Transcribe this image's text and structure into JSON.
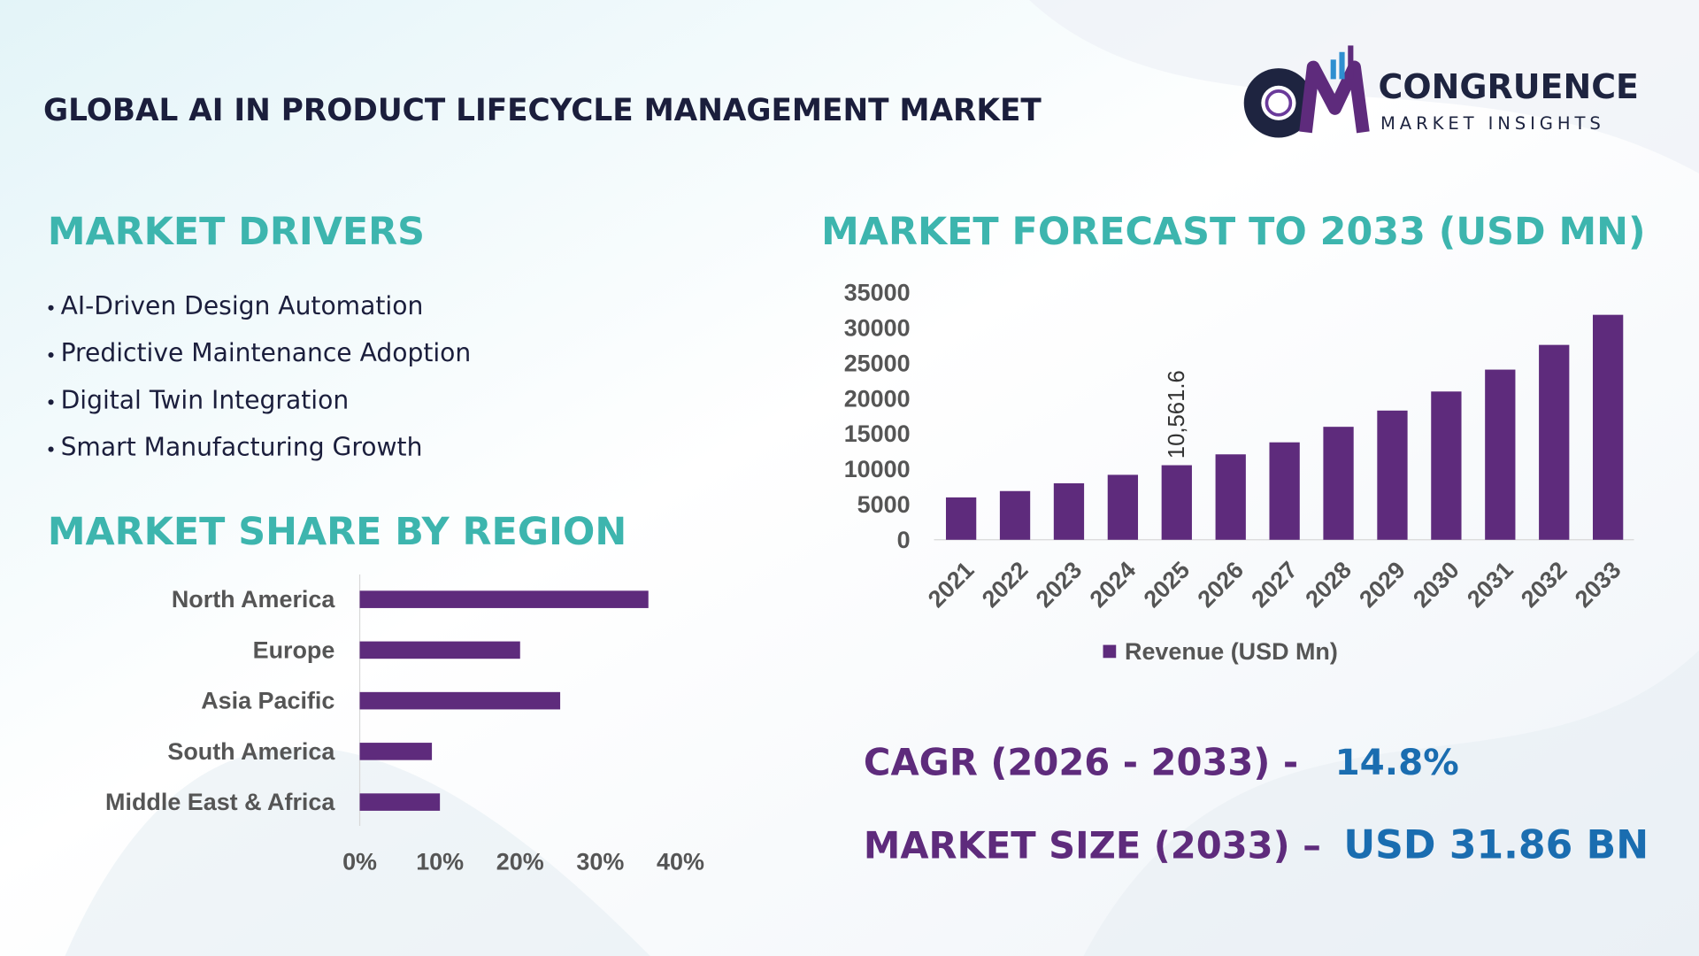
{
  "header": {
    "title": "GLOBAL AI IN PRODUCT LIFECYCLE MANAGEMENT MARKET",
    "brand": "CONGRUENCE",
    "brand_sub": "MARKET INSIGHTS"
  },
  "drivers": {
    "title": "MARKET DRIVERS",
    "items": [
      "AI-Driven Design Automation",
      "Predictive Maintenance Adoption",
      "Digital Twin Integration",
      "Smart Manufacturing Growth"
    ]
  },
  "highlights": {
    "cagr_label": "CAGR (2026 - 2033) -",
    "cagr_value": "14.8%",
    "size_label": "MARKET SIZE (2033) –",
    "size_value": "USD 31.86 BN"
  },
  "chart_data": [
    {
      "type": "bar",
      "orientation": "horizontal",
      "title": "MARKET SHARE BY REGION",
      "categories": [
        "North America",
        "Europe",
        "Asia Pacific",
        "South America",
        "Middle East & Africa"
      ],
      "values": [
        36,
        20,
        25,
        9,
        10
      ],
      "color": "#5e2b7c",
      "xlim": [
        0,
        40
      ],
      "xticks": [
        {
          "value": 0,
          "label": "0%"
        },
        {
          "value": 10,
          "label": "10%"
        },
        {
          "value": 20,
          "label": "20%"
        },
        {
          "value": 30,
          "label": "30%"
        },
        {
          "value": 40,
          "label": "40%"
        }
      ]
    },
    {
      "type": "bar",
      "orientation": "vertical",
      "title": "MARKET FORECAST TO 2033 (USD MN)",
      "categories": [
        "2021",
        "2022",
        "2023",
        "2024",
        "2025",
        "2026",
        "2027",
        "2028",
        "2029",
        "2030",
        "2031",
        "2032",
        "2033"
      ],
      "series": [
        {
          "name": "Revenue (USD Mn)",
          "color": "#5e2b7c",
          "values": [
            6000,
            6900,
            8000,
            9200,
            10561.6,
            12100,
            13800,
            16000,
            18300,
            21000,
            24100,
            27600,
            31860
          ],
          "value_labels": [
            null,
            null,
            null,
            null,
            "10,561.6",
            null,
            null,
            null,
            null,
            null,
            null,
            null,
            null
          ]
        }
      ],
      "ylim": [
        0,
        35000
      ],
      "yticks": [
        0,
        5000,
        10000,
        15000,
        20000,
        25000,
        30000,
        35000
      ],
      "legend": "bottom"
    }
  ]
}
